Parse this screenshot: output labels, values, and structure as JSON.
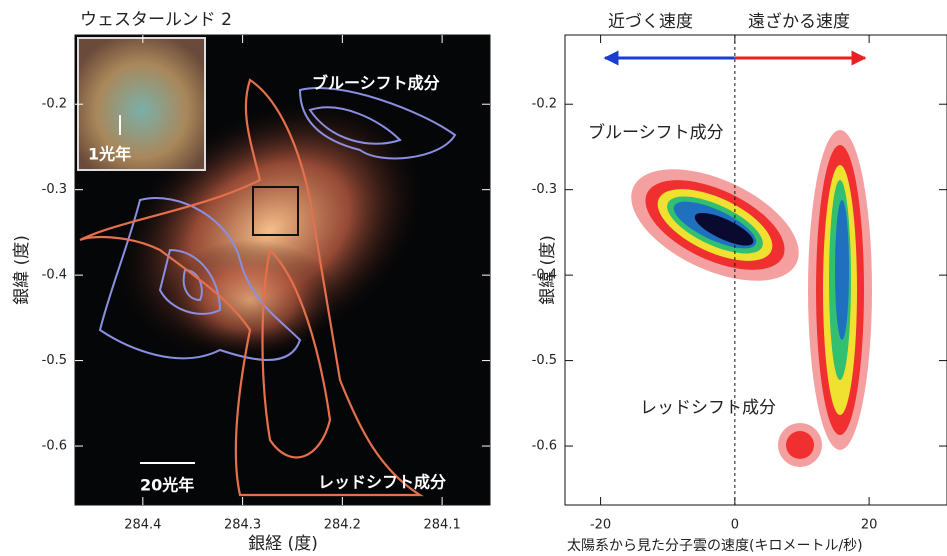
{
  "left_panel": {
    "title": "ウェスタールンド 2",
    "inset_label": "1光年",
    "scale_label": "20光年",
    "blue_label": "ブルーシフト成分",
    "red_label": "レッドシフト成分",
    "xlabel": "銀経 (度)",
    "ylabel": "銀緯 (度)",
    "xlim": [
      284.468,
      284.052
    ],
    "ylim": [
      -0.119,
      -0.669
    ],
    "xticks": [
      284.4,
      284.3,
      284.2,
      284.1
    ],
    "yticks": [
      -0.2,
      -0.3,
      -0.4,
      -0.5,
      -0.6
    ]
  },
  "right_panel": {
    "approach_label": "近づく速度",
    "recede_label": "遠ざかる速度",
    "blue_label": "ブルーシフト成分",
    "red_label": "レッドシフト成分",
    "xlabel": "太陽系から見た分子雲の速度(キロメートル/秒)",
    "ylabel": "銀緯 (度)",
    "xlim": [
      -25.3,
      31.6
    ],
    "ylim": [
      -0.119,
      -0.669
    ],
    "xticks": [
      -20,
      0,
      20
    ],
    "yticks": [
      -0.2,
      -0.3,
      -0.4,
      -0.5,
      -0.6
    ],
    "reference_line_x": 0
  }
}
